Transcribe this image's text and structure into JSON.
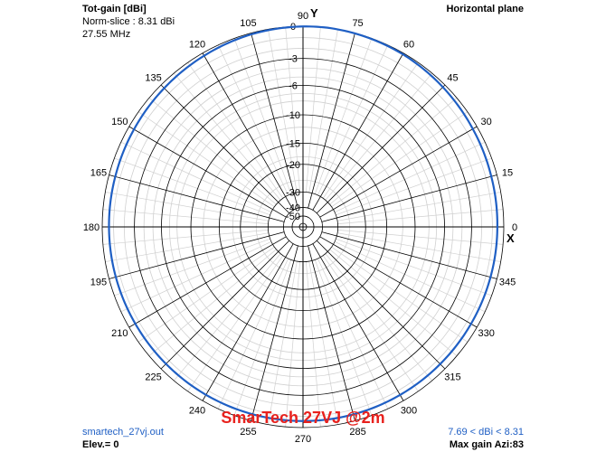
{
  "header": {
    "gain_label": "Tot-gain [dBi]",
    "norm_slice": "Norm-slice : 8.31 dBi",
    "frequency": "27.55 MHz",
    "plane": "Horizontal plane"
  },
  "footer": {
    "filename": "smartech_27vj.out",
    "elevation": "Elev.= 0",
    "gain_range": "7.69 < dBi < 8.31",
    "max_gain": "Max gain Azi:83"
  },
  "title": "SmarTech 27VJ @2m",
  "chart_data": {
    "type": "polar",
    "x_axis_label": "X",
    "y_axis_label": "Y",
    "angle_ticks": [
      "0",
      "15",
      "30",
      "45",
      "60",
      "75",
      "90",
      "105",
      "120",
      "135",
      "150",
      "165",
      "180",
      "195",
      "210",
      "225",
      "240",
      "255",
      "270",
      "285",
      "300",
      "315",
      "330",
      "345"
    ],
    "db_ticks": [
      "0",
      "-3",
      "-6",
      "-10",
      "-15",
      "-20",
      "-30",
      "-40",
      "-50"
    ],
    "db_levels": [
      0,
      -3,
      -6,
      -10,
      -15,
      -20,
      -30,
      -40,
      -50
    ],
    "grid": true,
    "series": [
      {
        "color": "#1f5fc4",
        "azimuth_deg": [
          0,
          15,
          30,
          45,
          60,
          75,
          83,
          90,
          105,
          120,
          135,
          150,
          165,
          180,
          195,
          210,
          225,
          240,
          255,
          270,
          285,
          300,
          315,
          330,
          345,
          360
        ],
        "gain_dbi": [
          7.75,
          7.8,
          7.9,
          8.05,
          8.2,
          8.28,
          8.31,
          8.29,
          8.2,
          8.05,
          7.92,
          7.82,
          7.75,
          7.72,
          7.7,
          7.69,
          7.7,
          7.72,
          7.73,
          7.74,
          7.74,
          7.73,
          7.72,
          7.72,
          7.73,
          7.75
        ]
      }
    ],
    "max_gain_dbi": 8.31
  }
}
